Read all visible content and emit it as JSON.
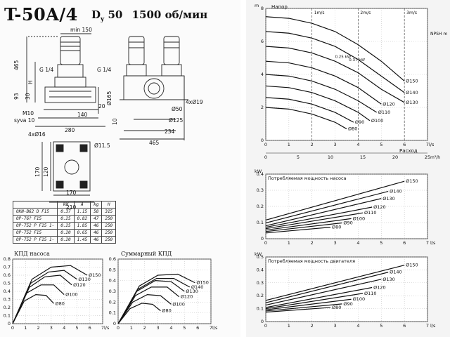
{
  "header": {
    "model": "T-50A/4",
    "dn_prefix": "D",
    "dn_sub": "y",
    "dn_value": "50",
    "speed": "1500 об/мин"
  },
  "drawing": {
    "dims": {
      "min150": "min 150",
      "d465": "465",
      "H": "H",
      "g14a": "G 1/4",
      "g14b": "G 1/4",
      "d93": "93",
      "d30": "30",
      "d165": "Ø165",
      "d20": "20",
      "d140": "140",
      "m10": "M10",
      "syva": "syva 10",
      "d280": "280",
      "d4x16": "4xØ16",
      "d115": "Ø11.5",
      "d120": "120",
      "d170a": "170",
      "d170b": "170",
      "d210": "210",
      "d10": "10",
      "d4x19": "4xØ19",
      "d50": "Ø50",
      "d125": "Ø125",
      "d234": "234",
      "d465b": "465"
    }
  },
  "spec_table": {
    "columns": [
      "",
      "kW",
      "A",
      "kg",
      "H"
    ],
    "rows": [
      [
        "OKN-B62 D F15",
        "0.37",
        "1.15",
        "58",
        "315"
      ],
      [
        "OP-76? F15",
        "0.25",
        "0.82",
        "47",
        "250"
      ],
      [
        "OP-752 P F15 1-",
        "0.25",
        "1.85",
        "46",
        "250"
      ],
      [
        "OP-752 F15",
        "0.20",
        "0.65",
        "46",
        "250"
      ],
      [
        "OP-752 P F15 1-",
        "0.20",
        "1.45",
        "46",
        "250"
      ]
    ]
  },
  "efficiency_labels": {
    "pump": "КПД насоса",
    "total": "Суммарный КПД"
  },
  "chart_data": [
    {
      "type": "line",
      "title": "Напор",
      "xlabel": "Расход",
      "x_unit_top": "l/s",
      "x_unit_bottom": "m³/h",
      "y_unit": "m",
      "xlim": [
        0,
        7
      ],
      "ylim": [
        0,
        8
      ],
      "x_ticks": [
        "0",
        "1",
        "2",
        "3",
        "4",
        "5",
        "6",
        "7"
      ],
      "x_ticks_bottom": [
        "0",
        "5",
        "10",
        "15",
        "20",
        "25"
      ],
      "y_ticks": [
        "0",
        "2",
        "4",
        "6",
        "8"
      ],
      "velocity_marks": [
        "1m/s",
        "2m/s",
        "3m/s"
      ],
      "npsh_label": "NPSH m",
      "kw_marks": [
        "0.25 kW",
        "0.37 kW"
      ],
      "series": [
        {
          "name": "Ø150",
          "values": [
            [
              0,
              7.5
            ],
            [
              1,
              7.4
            ],
            [
              2,
              7.1
            ],
            [
              3,
              6.6
            ],
            [
              4,
              5.8
            ],
            [
              5,
              4.8
            ],
            [
              6,
              3.6
            ]
          ]
        },
        {
          "name": "Ø140",
          "values": [
            [
              0,
              6.6
            ],
            [
              1,
              6.5
            ],
            [
              2,
              6.2
            ],
            [
              3,
              5.7
            ],
            [
              4,
              4.9
            ],
            [
              5,
              3.9
            ],
            [
              6,
              2.9
            ]
          ]
        },
        {
          "name": "Ø130",
          "values": [
            [
              0,
              5.7
            ],
            [
              1,
              5.6
            ],
            [
              2,
              5.3
            ],
            [
              3,
              4.8
            ],
            [
              4,
              4.1
            ],
            [
              5,
              3.1
            ],
            [
              6,
              2.3
            ]
          ]
        },
        {
          "name": "Ø120",
          "values": [
            [
              0,
              4.8
            ],
            [
              1,
              4.7
            ],
            [
              2,
              4.4
            ],
            [
              3,
              3.9
            ],
            [
              4,
              3.2
            ],
            [
              5,
              2.2
            ]
          ]
        },
        {
          "name": "Ø110",
          "values": [
            [
              0,
              4.0
            ],
            [
              1,
              3.9
            ],
            [
              2,
              3.6
            ],
            [
              3,
              3.1
            ],
            [
              4,
              2.4
            ],
            [
              4.8,
              1.7
            ]
          ]
        },
        {
          "name": "Ø100",
          "values": [
            [
              0,
              3.3
            ],
            [
              1,
              3.2
            ],
            [
              2,
              2.9
            ],
            [
              3,
              2.4
            ],
            [
              4,
              1.7
            ],
            [
              4.5,
              1.2
            ]
          ]
        },
        {
          "name": "Ø90",
          "values": [
            [
              0,
              2.6
            ],
            [
              1,
              2.5
            ],
            [
              2,
              2.2
            ],
            [
              3,
              1.7
            ],
            [
              3.8,
              1.1
            ]
          ]
        },
        {
          "name": "Ø80",
          "values": [
            [
              0,
              2.0
            ],
            [
              1,
              1.9
            ],
            [
              2,
              1.6
            ],
            [
              3,
              1.1
            ],
            [
              3.5,
              0.7
            ]
          ]
        }
      ]
    },
    {
      "type": "line",
      "title": "Потребляемая мощность насоса",
      "x_unit": "l/s",
      "y_unit": "kW",
      "xlim": [
        0,
        7
      ],
      "ylim": [
        0,
        0.45
      ],
      "x_ticks": [
        "0",
        "1",
        "2",
        "3",
        "4",
        "5",
        "6",
        "7"
      ],
      "y_ticks": [
        "0",
        "0.1",
        "0.2",
        "0.3",
        "0.4"
      ],
      "series": [
        {
          "name": "Ø150",
          "values": [
            [
              0,
              0.13
            ],
            [
              6,
              0.4
            ]
          ]
        },
        {
          "name": "Ø140",
          "values": [
            [
              0,
              0.11
            ],
            [
              5.3,
              0.33
            ]
          ]
        },
        {
          "name": "Ø130",
          "values": [
            [
              0,
              0.09
            ],
            [
              5,
              0.28
            ]
          ]
        },
        {
          "name": "Ø120",
          "values": [
            [
              0,
              0.08
            ],
            [
              4.6,
              0.22
            ]
          ]
        },
        {
          "name": "Ø110",
          "values": [
            [
              0,
              0.07
            ],
            [
              4.2,
              0.18
            ]
          ]
        },
        {
          "name": "Ø100",
          "values": [
            [
              0,
              0.06
            ],
            [
              3.7,
              0.14
            ]
          ]
        },
        {
          "name": "Ø90",
          "values": [
            [
              0,
              0.05
            ],
            [
              3.3,
              0.11
            ]
          ]
        },
        {
          "name": "Ø80",
          "values": [
            [
              0,
              0.04
            ],
            [
              2.8,
              0.08
            ]
          ]
        }
      ]
    },
    {
      "type": "line",
      "title": "Потребляемая мощность двигателя",
      "x_unit": "l/s",
      "y_unit": "kW",
      "xlim": [
        0,
        7
      ],
      "ylim": [
        0,
        0.55
      ],
      "x_ticks": [
        "0",
        "1",
        "2",
        "3",
        "4",
        "5",
        "6",
        "7"
      ],
      "y_ticks": [
        "0",
        "0.1",
        "0.2",
        "0.3",
        "0.4",
        "0.5"
      ],
      "series": [
        {
          "name": "Ø150",
          "values": [
            [
              0,
              0.18
            ],
            [
              6,
              0.48
            ]
          ]
        },
        {
          "name": "Ø140",
          "values": [
            [
              0,
              0.16
            ],
            [
              5.3,
              0.42
            ]
          ]
        },
        {
          "name": "Ø130",
          "values": [
            [
              0,
              0.14
            ],
            [
              5,
              0.36
            ]
          ]
        },
        {
          "name": "Ø120",
          "values": [
            [
              0,
              0.12
            ],
            [
              4.6,
              0.29
            ]
          ]
        },
        {
          "name": "Ø110",
          "values": [
            [
              0,
              0.11
            ],
            [
              4.2,
              0.24
            ]
          ]
        },
        {
          "name": "Ø100",
          "values": [
            [
              0,
              0.1
            ],
            [
              3.7,
              0.19
            ]
          ]
        },
        {
          "name": "Ø90",
          "values": [
            [
              0,
              0.09
            ],
            [
              3.3,
              0.15
            ]
          ]
        },
        {
          "name": "Ø80",
          "values": [
            [
              0,
              0.08
            ],
            [
              2.8,
              0.12
            ]
          ]
        }
      ]
    },
    {
      "type": "line",
      "title": "КПД насоса",
      "x_unit": "l/s",
      "xlim": [
        0,
        7
      ],
      "ylim": [
        0,
        0.8
      ],
      "x_ticks": [
        "0",
        "1",
        "2",
        "3",
        "4",
        "5",
        "6",
        "7"
      ],
      "y_ticks": [
        "0",
        "0.1",
        "0.2",
        "0.3",
        "0.4",
        "0.5",
        "0.6",
        "0.7",
        "0.8"
      ],
      "series": [
        {
          "name": "Ø150",
          "values": [
            [
              0,
              0
            ],
            [
              1.5,
              0.55
            ],
            [
              3,
              0.7
            ],
            [
              4.5,
              0.72
            ],
            [
              5.8,
              0.6
            ]
          ]
        },
        {
          "name": "Ø130",
          "values": [
            [
              0,
              0
            ],
            [
              1.4,
              0.5
            ],
            [
              2.8,
              0.64
            ],
            [
              4,
              0.66
            ],
            [
              5,
              0.55
            ]
          ]
        },
        {
          "name": "Ø120",
          "values": [
            [
              0,
              0
            ],
            [
              1.3,
              0.45
            ],
            [
              2.5,
              0.58
            ],
            [
              3.7,
              0.6
            ],
            [
              4.6,
              0.48
            ]
          ]
        },
        {
          "name": "Ø100",
          "values": [
            [
              0,
              0
            ],
            [
              1.1,
              0.38
            ],
            [
              2.2,
              0.48
            ],
            [
              3.2,
              0.48
            ],
            [
              4,
              0.36
            ]
          ]
        },
        {
          "name": "Ø80",
          "values": [
            [
              0,
              0
            ],
            [
              0.9,
              0.28
            ],
            [
              1.8,
              0.36
            ],
            [
              2.6,
              0.35
            ],
            [
              3.2,
              0.25
            ]
          ]
        }
      ]
    },
    {
      "type": "line",
      "title": "Суммарный КПД",
      "x_unit": "l/s",
      "xlim": [
        0,
        7
      ],
      "ylim": [
        0,
        0.6
      ],
      "x_ticks": [
        "0",
        "1",
        "2",
        "3",
        "4",
        "5",
        "6",
        "7"
      ],
      "y_ticks": [
        "0",
        "0.1",
        "0.2",
        "0.3",
        "0.4",
        "0.5",
        "0.6"
      ],
      "series": [
        {
          "name": "Ø150",
          "values": [
            [
              0,
              0
            ],
            [
              1.6,
              0.35
            ],
            [
              3,
              0.45
            ],
            [
              4.5,
              0.46
            ],
            [
              5.8,
              0.38
            ]
          ]
        },
        {
          "name": "Ø140",
          "values": [
            [
              0,
              0
            ],
            [
              1.5,
              0.32
            ],
            [
              2.9,
              0.42
            ],
            [
              4.2,
              0.42
            ],
            [
              5.4,
              0.34
            ]
          ]
        },
        {
          "name": "Ø130",
          "values": [
            [
              0,
              0
            ],
            [
              1.4,
              0.3
            ],
            [
              2.8,
              0.4
            ],
            [
              4,
              0.39
            ],
            [
              5,
              0.3
            ]
          ]
        },
        {
          "name": "Ø120",
          "values": [
            [
              0,
              0
            ],
            [
              1.3,
              0.26
            ],
            [
              2.5,
              0.34
            ],
            [
              3.7,
              0.34
            ],
            [
              4.6,
              0.25
            ]
          ]
        },
        {
          "name": "Ø100",
          "values": [
            [
              0,
              0
            ],
            [
              1.1,
              0.2
            ],
            [
              2.2,
              0.27
            ],
            [
              3.2,
              0.26
            ],
            [
              4,
              0.18
            ]
          ]
        },
        {
          "name": "Ø80",
          "values": [
            [
              0,
              0
            ],
            [
              0.9,
              0.14
            ],
            [
              1.8,
              0.19
            ],
            [
              2.6,
              0.18
            ],
            [
              3.2,
              0.12
            ]
          ]
        }
      ]
    }
  ]
}
